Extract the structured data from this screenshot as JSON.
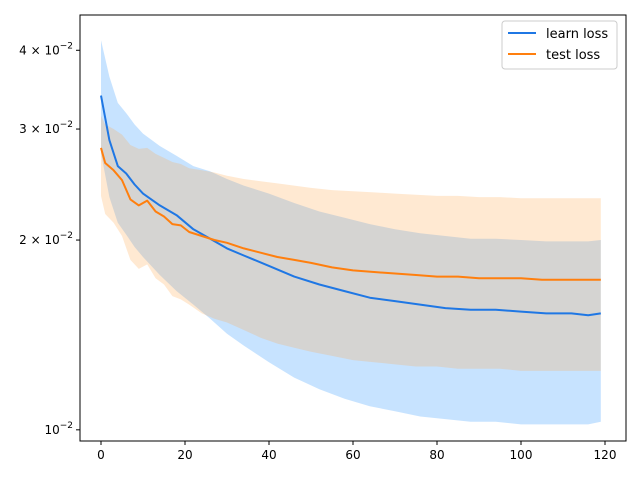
{
  "chart_data": {
    "type": "line",
    "title": "",
    "xlabel": "",
    "ylabel": "",
    "xlim": [
      -5,
      125
    ],
    "ylim": [
      0.0096,
      0.0455
    ],
    "yscale": "log",
    "grid": false,
    "legend_position": "top-right",
    "x_ticks": [
      0,
      20,
      40,
      60,
      80,
      100,
      120
    ],
    "x_tick_labels": [
      "0",
      "20",
      "40",
      "60",
      "80",
      "100",
      "120"
    ],
    "y_ticks": [
      0.01,
      0.02,
      0.03,
      0.04
    ],
    "y_tick_labels": [
      {
        "mant": "",
        "exp": "−2"
      },
      {
        "mant": "2",
        "exp": "−2"
      },
      {
        "mant": "3",
        "exp": "−2"
      },
      {
        "mant": "4",
        "exp": "−2"
      }
    ],
    "series": [
      {
        "name": "learn loss",
        "color": "#1f77e4",
        "band_color": "#1f8fff",
        "points": [
          [
            0,
            0.0339
          ],
          [
            2,
            0.0288
          ],
          [
            4,
            0.0262
          ],
          [
            6,
            0.0255
          ],
          [
            8,
            0.0245
          ],
          [
            10,
            0.0237
          ],
          [
            14,
            0.0227
          ],
          [
            18,
            0.0219
          ],
          [
            22,
            0.0208
          ],
          [
            26,
            0.0201
          ],
          [
            30,
            0.0194
          ],
          [
            34,
            0.0189
          ],
          [
            40,
            0.0182
          ],
          [
            46,
            0.0175
          ],
          [
            52,
            0.017
          ],
          [
            58,
            0.0166
          ],
          [
            64,
            0.0162
          ],
          [
            70,
            0.016
          ],
          [
            76,
            0.0158
          ],
          [
            82,
            0.0156
          ],
          [
            88,
            0.0155
          ],
          [
            94,
            0.0155
          ],
          [
            100,
            0.0154
          ],
          [
            106,
            0.0153
          ],
          [
            112,
            0.0153
          ],
          [
            116,
            0.0152
          ],
          [
            119,
            0.0153
          ]
        ],
        "upper": [
          [
            0,
            0.0415
          ],
          [
            2,
            0.0363
          ],
          [
            4,
            0.033
          ],
          [
            6,
            0.0318
          ],
          [
            8,
            0.0305
          ],
          [
            10,
            0.0295
          ],
          [
            14,
            0.0282
          ],
          [
            18,
            0.0272
          ],
          [
            22,
            0.0262
          ],
          [
            26,
            0.0257
          ],
          [
            30,
            0.025
          ],
          [
            34,
            0.0244
          ],
          [
            40,
            0.0237
          ],
          [
            46,
            0.0229
          ],
          [
            52,
            0.0222
          ],
          [
            58,
            0.0217
          ],
          [
            64,
            0.0212
          ],
          [
            70,
            0.0208
          ],
          [
            76,
            0.0205
          ],
          [
            82,
            0.0203
          ],
          [
            88,
            0.0201
          ],
          [
            94,
            0.0201
          ],
          [
            100,
            0.02
          ],
          [
            106,
            0.0199
          ],
          [
            112,
            0.0199
          ],
          [
            116,
            0.0199
          ],
          [
            119,
            0.02
          ]
        ],
        "lower": [
          [
            0,
            0.0275
          ],
          [
            2,
            0.0234
          ],
          [
            4,
            0.0213
          ],
          [
            6,
            0.0204
          ],
          [
            8,
            0.0195
          ],
          [
            10,
            0.0188
          ],
          [
            14,
            0.0176
          ],
          [
            18,
            0.0166
          ],
          [
            22,
            0.0158
          ],
          [
            26,
            0.015
          ],
          [
            30,
            0.0142
          ],
          [
            34,
            0.0136
          ],
          [
            40,
            0.0128
          ],
          [
            46,
            0.0121
          ],
          [
            52,
            0.0116
          ],
          [
            58,
            0.0112
          ],
          [
            64,
            0.0109
          ],
          [
            70,
            0.0107
          ],
          [
            76,
            0.0105
          ],
          [
            82,
            0.0104
          ],
          [
            88,
            0.0103
          ],
          [
            94,
            0.0103
          ],
          [
            100,
            0.0102
          ],
          [
            106,
            0.0102
          ],
          [
            112,
            0.0102
          ],
          [
            116,
            0.0102
          ],
          [
            119,
            0.0103
          ]
        ]
      },
      {
        "name": "test loss",
        "color": "#ff7f0e",
        "band_color": "#ffa64d",
        "points": [
          [
            0,
            0.028
          ],
          [
            1,
            0.0265
          ],
          [
            3,
            0.0258
          ],
          [
            5,
            0.0249
          ],
          [
            7,
            0.0232
          ],
          [
            9,
            0.0227
          ],
          [
            11,
            0.0231
          ],
          [
            13,
            0.0222
          ],
          [
            15,
            0.0218
          ],
          [
            17,
            0.0212
          ],
          [
            19,
            0.0211
          ],
          [
            21,
            0.0206
          ],
          [
            24,
            0.0203
          ],
          [
            27,
            0.02
          ],
          [
            30,
            0.0198
          ],
          [
            34,
            0.0194
          ],
          [
            38,
            0.0191
          ],
          [
            42,
            0.0188
          ],
          [
            46,
            0.0186
          ],
          [
            50,
            0.0184
          ],
          [
            55,
            0.0181
          ],
          [
            60,
            0.0179
          ],
          [
            65,
            0.0178
          ],
          [
            70,
            0.0177
          ],
          [
            75,
            0.0176
          ],
          [
            80,
            0.0175
          ],
          [
            85,
            0.0175
          ],
          [
            90,
            0.0174
          ],
          [
            95,
            0.0174
          ],
          [
            100,
            0.0174
          ],
          [
            105,
            0.0173
          ],
          [
            110,
            0.0173
          ],
          [
            115,
            0.0173
          ],
          [
            119,
            0.0173
          ]
        ],
        "upper": [
          [
            0,
            0.0315
          ],
          [
            1,
            0.0305
          ],
          [
            3,
            0.03
          ],
          [
            5,
            0.0294
          ],
          [
            7,
            0.0283
          ],
          [
            9,
            0.0279
          ],
          [
            11,
            0.028
          ],
          [
            13,
            0.0274
          ],
          [
            15,
            0.027
          ],
          [
            17,
            0.0266
          ],
          [
            19,
            0.0264
          ],
          [
            21,
            0.026
          ],
          [
            24,
            0.0258
          ],
          [
            27,
            0.0256
          ],
          [
            30,
            0.0253
          ],
          [
            34,
            0.025
          ],
          [
            38,
            0.0248
          ],
          [
            42,
            0.0246
          ],
          [
            46,
            0.0244
          ],
          [
            50,
            0.0242
          ],
          [
            55,
            0.024
          ],
          [
            60,
            0.0239
          ],
          [
            65,
            0.0238
          ],
          [
            70,
            0.0237
          ],
          [
            75,
            0.0236
          ],
          [
            80,
            0.0235
          ],
          [
            85,
            0.0235
          ],
          [
            90,
            0.0234
          ],
          [
            95,
            0.0234
          ],
          [
            100,
            0.0233
          ],
          [
            105,
            0.0233
          ],
          [
            110,
            0.0233
          ],
          [
            115,
            0.0233
          ],
          [
            119,
            0.0233
          ]
        ],
        "lower": [
          [
            0,
            0.0235
          ],
          [
            1,
            0.022
          ],
          [
            3,
            0.0213
          ],
          [
            5,
            0.0203
          ],
          [
            7,
            0.0186
          ],
          [
            9,
            0.018
          ],
          [
            11,
            0.0183
          ],
          [
            13,
            0.0174
          ],
          [
            15,
            0.017
          ],
          [
            17,
            0.0163
          ],
          [
            19,
            0.0161
          ],
          [
            21,
            0.0158
          ],
          [
            24,
            0.0153
          ],
          [
            27,
            0.015
          ],
          [
            30,
            0.0148
          ],
          [
            34,
            0.0144
          ],
          [
            38,
            0.014
          ],
          [
            42,
            0.0137
          ],
          [
            46,
            0.0135
          ],
          [
            50,
            0.0133
          ],
          [
            55,
            0.0131
          ],
          [
            60,
            0.0129
          ],
          [
            65,
            0.0128
          ],
          [
            70,
            0.0127
          ],
          [
            75,
            0.0126
          ],
          [
            80,
            0.0126
          ],
          [
            85,
            0.0125
          ],
          [
            90,
            0.0125
          ],
          [
            95,
            0.0125
          ],
          [
            100,
            0.0124
          ],
          [
            105,
            0.0124
          ],
          [
            110,
            0.0124
          ],
          [
            115,
            0.0124
          ],
          [
            119,
            0.0124
          ]
        ]
      }
    ]
  }
}
